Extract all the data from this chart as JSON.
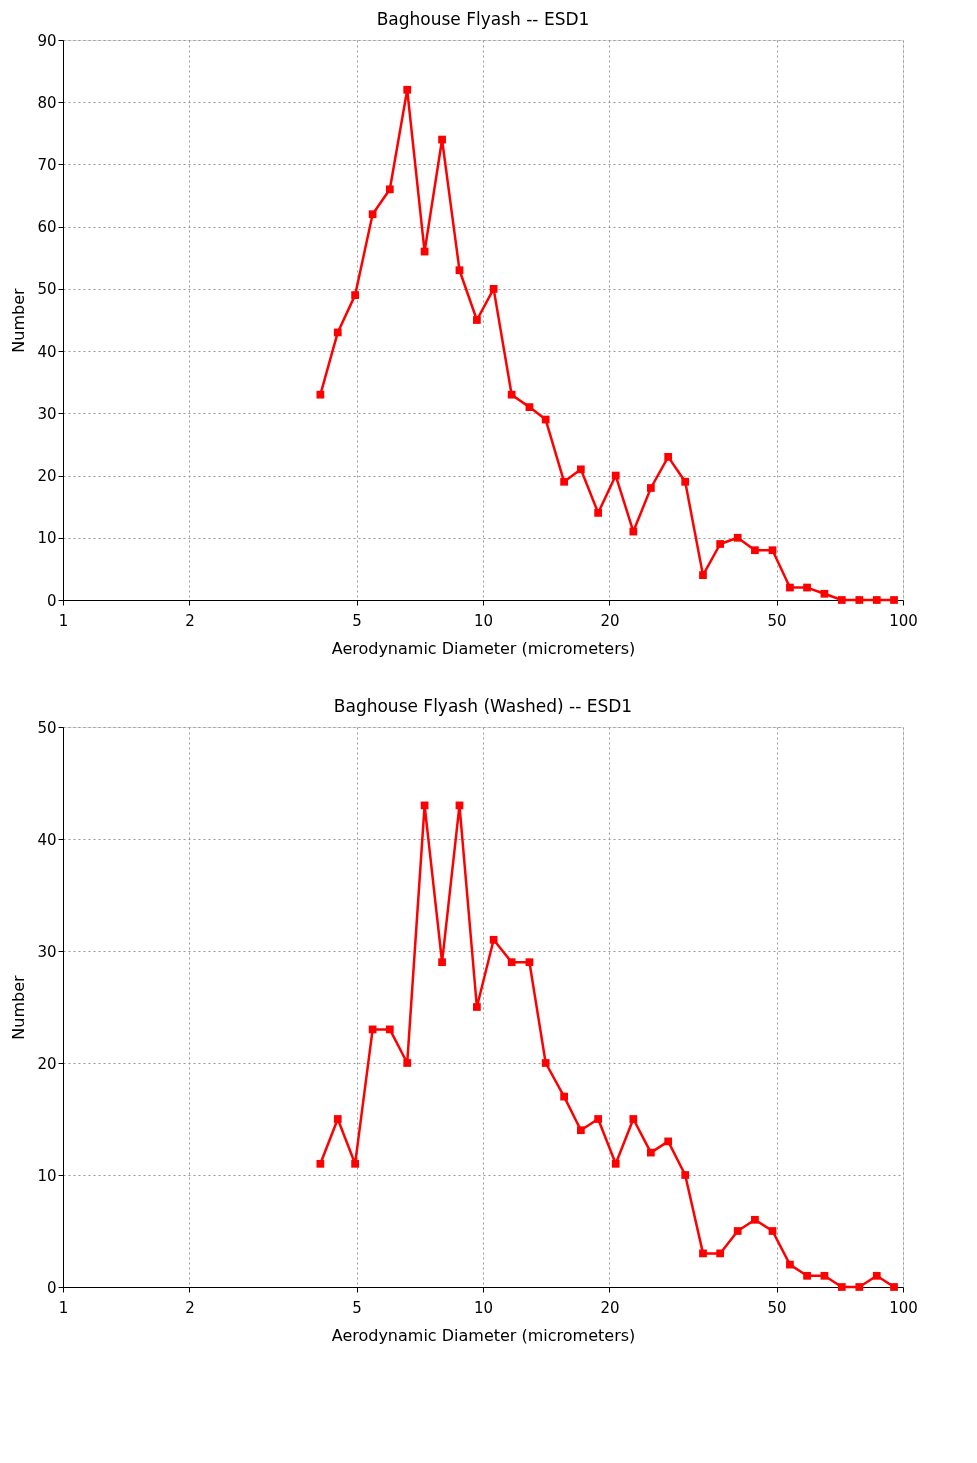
{
  "chart_data": [
    {
      "type": "line",
      "title": "Baghouse Flyash -- ESD1",
      "xlabel": "Aerodynamic Diameter (micrometers)",
      "ylabel": "Number",
      "log": "x",
      "xlim": [
        1,
        100
      ],
      "xticks": [
        1,
        2,
        5,
        10,
        20,
        50,
        100
      ],
      "ylim": [
        0,
        90
      ],
      "yticks": [
        0,
        10,
        20,
        30,
        40,
        50,
        60,
        70,
        80,
        90
      ],
      "grid": true,
      "marker": "square",
      "line_style": "solid",
      "x": [
        4.1,
        4.51,
        4.96,
        5.46,
        6.0,
        6.6,
        7.26,
        7.99,
        8.79,
        9.67,
        10.6,
        11.7,
        12.9,
        14.1,
        15.6,
        17.1,
        18.8,
        20.7,
        22.8,
        25.1,
        27.6,
        30.3,
        33.4,
        36.7,
        40.4,
        44.4,
        48.9,
        53.8,
        59.1,
        65.0,
        71.5,
        78.7,
        86.6,
        95.2
      ],
      "series": [
        {
          "color": "#ff0000",
          "values": [
            33,
            43,
            49,
            62,
            66,
            82,
            56,
            74,
            53,
            45,
            50,
            33,
            31,
            29,
            19,
            21,
            14,
            20,
            11,
            18,
            23,
            19,
            4,
            9,
            10,
            8,
            8,
            2,
            2,
            1,
            0,
            0,
            0,
            0
          ]
        }
      ]
    },
    {
      "type": "line",
      "title": "Baghouse Flyash (Washed) -- ESD1",
      "xlabel": "Aerodynamic Diameter (micrometers)",
      "ylabel": "Number",
      "log": "x",
      "xlim": [
        1,
        100
      ],
      "xticks": [
        1,
        2,
        5,
        10,
        20,
        50,
        100
      ],
      "ylim": [
        0,
        50
      ],
      "yticks": [
        0,
        10,
        20,
        30,
        40,
        50
      ],
      "grid": true,
      "marker": "square",
      "line_style": "solid",
      "x": [
        4.1,
        4.51,
        4.96,
        5.46,
        6.0,
        6.6,
        7.26,
        7.99,
        8.79,
        9.67,
        10.6,
        11.7,
        12.9,
        14.1,
        15.6,
        17.1,
        18.8,
        20.7,
        22.8,
        25.1,
        27.6,
        30.3,
        33.4,
        36.7,
        40.4,
        44.4,
        48.9,
        53.8,
        59.1,
        65.0,
        71.5,
        78.7,
        86.6,
        95.2
      ],
      "series": [
        {
          "color": "#ff0000",
          "values": [
            11,
            15,
            11,
            23,
            23,
            20,
            43,
            29,
            43,
            25,
            31,
            29,
            29,
            20,
            17,
            14,
            15,
            11,
            15,
            12,
            13,
            10,
            3,
            3,
            5,
            6,
            5,
            2,
            1,
            1,
            0,
            0,
            1,
            0
          ]
        }
      ]
    }
  ]
}
